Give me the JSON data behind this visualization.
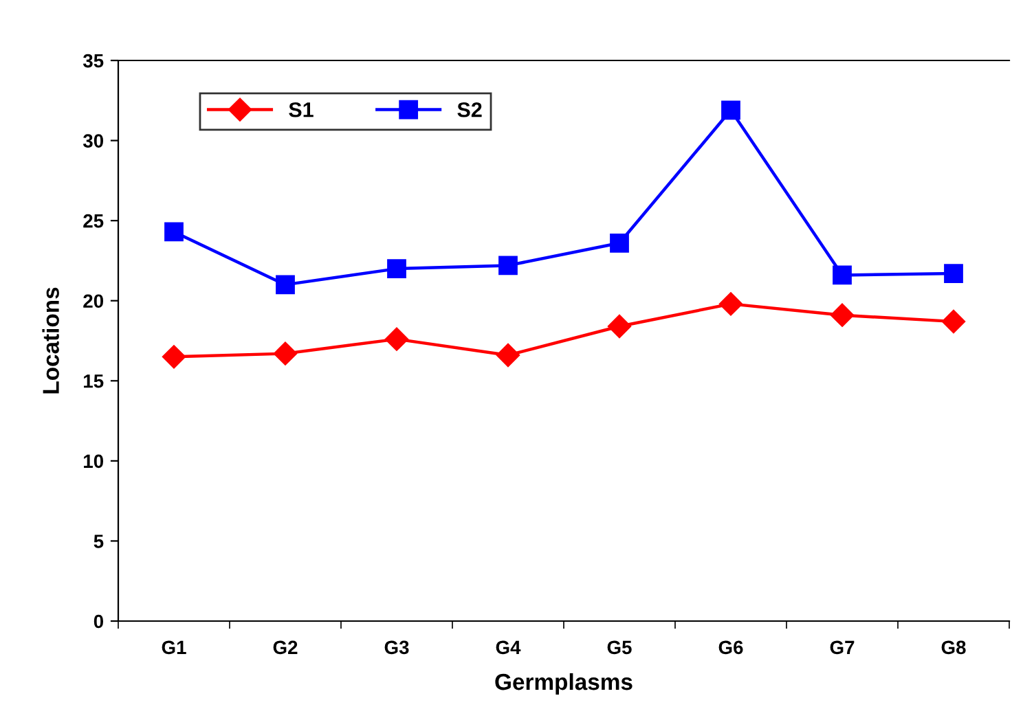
{
  "chart_data": {
    "type": "line",
    "xlabel": "Germplasms",
    "ylabel": "Locations",
    "categories": [
      "G1",
      "G2",
      "G3",
      "G4",
      "G5",
      "G6",
      "G7",
      "G8"
    ],
    "series": [
      {
        "name": "S1",
        "color": "#ff0000",
        "marker": "diamond",
        "values": [
          16.5,
          16.7,
          17.6,
          16.6,
          18.4,
          19.8,
          19.1,
          18.7
        ]
      },
      {
        "name": "S2",
        "color": "#0000ff",
        "marker": "square",
        "values": [
          24.3,
          21.0,
          22.0,
          22.2,
          23.6,
          31.9,
          21.6,
          21.7
        ]
      }
    ],
    "ylim": [
      0,
      35
    ],
    "yticks": [
      0,
      5,
      10,
      15,
      20,
      25,
      30,
      35
    ],
    "grid": false,
    "legend": "top left",
    "line_style": "solid"
  }
}
